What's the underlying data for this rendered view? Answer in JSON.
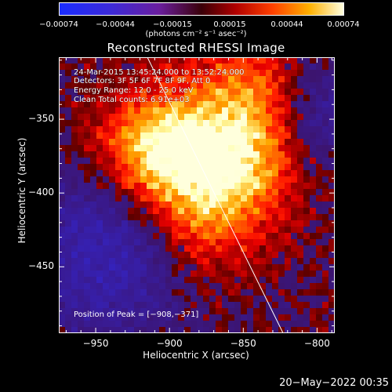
{
  "colorbar": {
    "ticks": [
      "−0.00074",
      "−0.00044",
      "−0.00015",
      "0.00015",
      "0.00044",
      "0.00074"
    ],
    "units": "(photons cm⁻² s⁻¹ asec⁻²)",
    "range": [
      -0.00074,
      0.00074
    ]
  },
  "chart_data": {
    "type": "heatmap",
    "title": "Reconstructed RHESSI Image",
    "xlabel": "Heliocentric X (arcsec)",
    "ylabel": "Heliocentric Y (arcsec)",
    "xlim": [
      -975,
      -788
    ],
    "ylim": [
      -495,
      -308
    ],
    "x_ticks": [
      -950,
      -900,
      -850,
      -800
    ],
    "y_ticks": [
      -350,
      -400,
      -450
    ],
    "x_tick_labels": [
      "−950",
      "−900",
      "−850",
      "−800"
    ],
    "y_tick_labels": [
      "−350",
      "−400",
      "−450"
    ],
    "colormap": "hot (blue-violet for negative values)",
    "peak_position": [
      -908,
      -371
    ],
    "annotations": [
      "24-Mar-2015 13:45:24.000 to 13:52:24.000",
      "Detectors: 3F 5F 6F 7F 8F 9F, Att 0",
      "Energy Range: 12.0 - 25.0 keV",
      "Clean     Total counts: 6.91e+03",
      "Position of Peak = [−908,−371]"
    ],
    "limb_line": {
      "from": [
        -915,
        -308
      ],
      "to": [
        -823,
        -495
      ]
    },
    "bright_sources": [
      {
        "x": -908,
        "y": -371,
        "value": 0.00074
      },
      {
        "x": -855,
        "y": -380,
        "value": 0.0006
      },
      {
        "x": -880,
        "y": -425,
        "value": 0.00035
      },
      {
        "x": -845,
        "y": -330,
        "value": 0.0004
      }
    ]
  },
  "footer": {
    "datestamp": "20−May−2022 00:35"
  }
}
